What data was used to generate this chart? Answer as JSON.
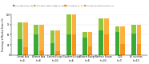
{
  "categories": [
    "Central Asia\n(n=5)",
    "Western Asia\n(n=8)",
    "Eastern Europe\n(n=10)",
    "Southern Europe\n(n=4)",
    "Western Europe\n(n=9)",
    "Northern Europe\n(n=10)",
    "CCEE\n(n=7)",
    "All countries\n(n=53)"
  ],
  "legend_labels": [
    "Group does CAN (n=28)",
    "CAN in digital health Strategy (n=46)",
    "Group does NC (n=17)",
    "NC in national health Strategy (n=6)"
  ],
  "legend_colors": [
    "#3aaa35",
    "#8dc63f",
    "#f7941d",
    "#f7941d"
  ],
  "bar1_bottom": [
    40,
    50,
    30,
    50,
    44,
    60,
    57,
    53
  ],
  "bar1_top": [
    40,
    25,
    30,
    50,
    12,
    30,
    14,
    22
  ],
  "bar2_bottom": [
    20,
    12,
    10,
    50,
    22,
    50,
    28,
    28
  ],
  "bar2_top": [
    60,
    62,
    50,
    50,
    34,
    40,
    43,
    47
  ],
  "color_dark_green": "#3aaa35",
  "color_light_green": "#8dc63f",
  "color_dark_orange": "#f7941d",
  "color_light_orange": "#fbb040",
  "ylim": [
    0,
    100
  ],
  "ylabel": "Percentage of Member States (%)",
  "background_color": "#ffffff",
  "yticks": [
    0,
    25,
    50,
    75,
    100
  ]
}
